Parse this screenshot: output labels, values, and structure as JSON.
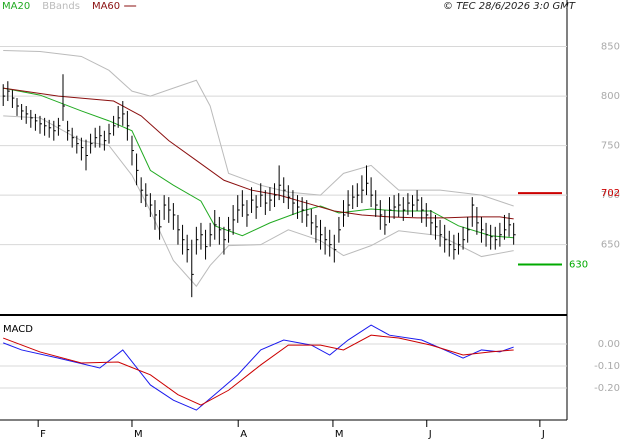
{
  "chart_data": [
    {
      "type": "ohlc",
      "title": "© TEC 28/6/2026 3:0 GMT",
      "bar_color": "#000000",
      "xlim": [
        -0.7,
        122.6
      ],
      "ylim": [
        580,
        897
      ],
      "yticks": [
        650,
        700,
        750,
        800,
        850
      ],
      "grid": true,
      "high": [
        812,
        815,
        806,
        798,
        792,
        790,
        786,
        782,
        780,
        778,
        776,
        775,
        778,
        822,
        775,
        768,
        760,
        758,
        756,
        762,
        768,
        770,
        765,
        772,
        780,
        790,
        795,
        785,
        760,
        742,
        718,
        712,
        702,
        695,
        685,
        700,
        698,
        692,
        680,
        670,
        660,
        655,
        668,
        672,
        665,
        672,
        685,
        678,
        668,
        678,
        690,
        700,
        705,
        695,
        708,
        700,
        712,
        705,
        708,
        712,
        730,
        718,
        710,
        705,
        700,
        698,
        695,
        686,
        680,
        675,
        668,
        665,
        660,
        678,
        695,
        705,
        710,
        712,
        720,
        730,
        718,
        705,
        695,
        685,
        698,
        700,
        702,
        698,
        702,
        700,
        705,
        698,
        692,
        685,
        680,
        675,
        670,
        664,
        660,
        662,
        668,
        678,
        698,
        688,
        678,
        672,
        670,
        668,
        672,
        680,
        682,
        672
      ],
      "low": [
        790,
        795,
        788,
        780,
        776,
        772,
        768,
        765,
        762,
        760,
        758,
        755,
        760,
        775,
        755,
        748,
        742,
        735,
        725,
        742,
        748,
        748,
        745,
        752,
        760,
        768,
        770,
        755,
        730,
        710,
        692,
        688,
        678,
        665,
        655,
        675,
        672,
        665,
        650,
        640,
        632,
        597,
        640,
        645,
        635,
        648,
        655,
        650,
        640,
        652,
        660,
        672,
        678,
        668,
        682,
        676,
        688,
        680,
        684,
        688,
        695,
        692,
        686,
        680,
        676,
        672,
        668,
        660,
        652,
        645,
        640,
        638,
        632,
        652,
        668,
        678,
        686,
        688,
        692,
        700,
        688,
        678,
        665,
        660,
        672,
        676,
        678,
        674,
        680,
        678,
        684,
        672,
        668,
        660,
        655,
        648,
        642,
        638,
        635,
        640,
        645,
        652,
        668,
        660,
        652,
        648,
        645,
        645,
        648,
        655,
        658,
        650
      ],
      "close": [
        800,
        805,
        798,
        790,
        785,
        782,
        778,
        775,
        772,
        770,
        768,
        765,
        770,
        790,
        765,
        758,
        752,
        748,
        740,
        752,
        758,
        760,
        755,
        762,
        770,
        778,
        782,
        770,
        745,
        725,
        705,
        700,
        690,
        680,
        668,
        690,
        685,
        680,
        665,
        655,
        645,
        620,
        655,
        660,
        648,
        660,
        670,
        665,
        655,
        665,
        675,
        685,
        690,
        680,
        695,
        688,
        700,
        692,
        695,
        700,
        710,
        705,
        698,
        692,
        688,
        685,
        680,
        672,
        668,
        660,
        655,
        650,
        645,
        665,
        680,
        690,
        698,
        700,
        705,
        712,
        700,
        690,
        680,
        670,
        685,
        688,
        690,
        685,
        692,
        690,
        695,
        685,
        680,
        672,
        668,
        660,
        655,
        650,
        645,
        650,
        655,
        665,
        690,
        672,
        665,
        660,
        658,
        655,
        660,
        665,
        670,
        660
      ],
      "series": [
        {
          "name": "MA20",
          "color": "#22aa22",
          "x": [
            0,
            8,
            17,
            23,
            28,
            32,
            37,
            43,
            46,
            52,
            58,
            65,
            69,
            73,
            80,
            86,
            93,
            99,
            106,
            111
          ],
          "values": [
            808,
            801,
            785,
            775,
            765,
            725,
            710,
            694,
            669,
            659,
            672,
            684,
            689,
            682,
            686,
            684,
            684,
            669,
            659,
            657
          ]
        },
        {
          "name": "BBands",
          "color": "#bbbbbb",
          "x": [
            0,
            8,
            17,
            23,
            28,
            32,
            37,
            42,
            45,
            49,
            56,
            62,
            69,
            74,
            80,
            86,
            95,
            104,
            111
          ],
          "upper": [
            846,
            845,
            840,
            826,
            805,
            800,
            808,
            816,
            790,
            722,
            710,
            703,
            700,
            722,
            730,
            705,
            705,
            700,
            689
          ],
          "lower": [
            780,
            778,
            755,
            750,
            720,
            684,
            634,
            608,
            629,
            649,
            650,
            665,
            654,
            639,
            649,
            664,
            659,
            638,
            644
          ]
        },
        {
          "name": "MA60",
          "color": "#8b1010",
          "x": [
            0,
            12,
            24,
            30,
            36,
            42,
            48,
            54,
            60,
            66,
            72,
            78,
            84,
            90,
            96,
            102,
            108,
            111
          ],
          "values": [
            808,
            800,
            795,
            780,
            755,
            735,
            715,
            705,
            700,
            692,
            684,
            680,
            678,
            677,
            677,
            678,
            678,
            676
          ]
        }
      ],
      "levels": [
        {
          "value": 702,
          "color": "#cc0000"
        },
        {
          "value": 630,
          "color": "#00aa00"
        }
      ]
    },
    {
      "type": "macd",
      "title": "MACD",
      "xlim": [
        -0.7,
        122.6
      ],
      "ylim": [
        -0.345,
        0.118
      ],
      "yticks": [
        {
          "value": 0,
          "label": "0.00"
        },
        {
          "value": -0.1,
          "label": "-0.10"
        },
        {
          "value": -0.2,
          "label": "-0.20"
        }
      ],
      "grid": true,
      "xticks": [
        {
          "value": 7.6,
          "label": "F"
        },
        {
          "value": 28,
          "label": "M"
        },
        {
          "value": 51.1,
          "label": "A"
        },
        {
          "value": 71.7,
          "label": "M"
        },
        {
          "value": 92.1,
          "label": "J"
        },
        {
          "value": 116.7,
          "label": "J"
        }
      ],
      "series": [
        {
          "color": "#1a1aee",
          "x": [
            0,
            4,
            12,
            21,
            26,
            32,
            37,
            42,
            46,
            51,
            56,
            61,
            67,
            71,
            75,
            80,
            84,
            91,
            96,
            100,
            104,
            108,
            111
          ],
          "values": [
            0.005,
            -0.027,
            -0.064,
            -0.109,
            -0.027,
            -0.186,
            -0.255,
            -0.3,
            -0.23,
            -0.14,
            -0.027,
            0.018,
            -0.005,
            -0.05,
            0.018,
            0.086,
            0.04,
            0.018,
            -0.027,
            -0.064,
            -0.027,
            -0.036,
            -0.014
          ]
        },
        {
          "color": "#cc0000",
          "x": [
            0,
            8,
            17,
            25,
            32,
            38,
            43,
            49,
            56,
            62,
            69,
            74,
            80,
            86,
            93,
            100,
            106,
            111
          ],
          "values": [
            0.027,
            -0.036,
            -0.086,
            -0.082,
            -0.14,
            -0.23,
            -0.277,
            -0.21,
            -0.095,
            -0.005,
            -0.005,
            -0.027,
            0.04,
            0.027,
            -0.005,
            -0.05,
            -0.036,
            -0.027
          ]
        }
      ]
    }
  ]
}
